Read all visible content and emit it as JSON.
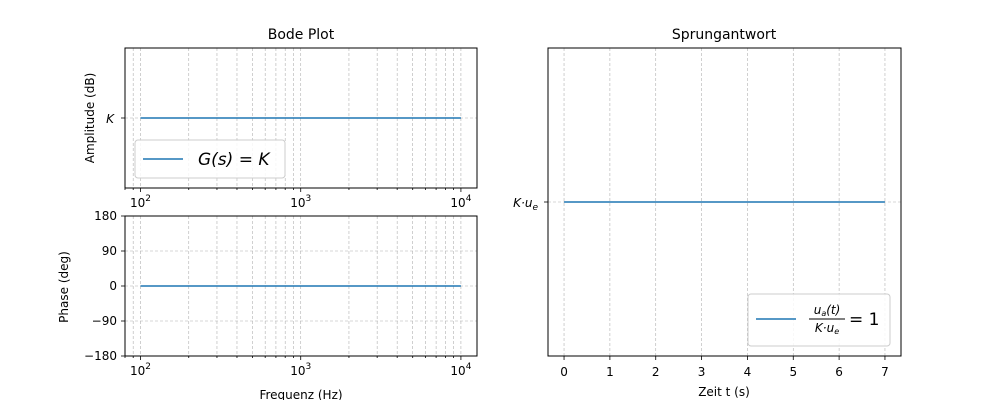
{
  "chart_data": [
    {
      "type": "line",
      "panel": "bode-amplitude",
      "title": "Bode Plot",
      "ylabel": "Amplitude (dB)",
      "xscale": "log",
      "xlim": [
        80,
        12600
      ],
      "ytick_labels": [
        "K"
      ],
      "xtick_labels": [
        {
          "value": 100,
          "base": "10",
          "exp": "2"
        },
        {
          "value": 1000,
          "base": "10",
          "exp": "3"
        },
        {
          "value": 10000,
          "base": "10",
          "exp": "4"
        }
      ],
      "grid": true,
      "legend": {
        "placement": "lower-left",
        "entries": [
          "G(s) = K"
        ]
      },
      "series": [
        {
          "name": "G(s) = K",
          "color": "#1f77b4",
          "x": [
            100,
            10000
          ],
          "y": [
            "K",
            "K"
          ]
        }
      ]
    },
    {
      "type": "line",
      "panel": "bode-phase",
      "xlabel": "Frequenz (Hz)",
      "ylabel": "Phase (deg)",
      "xscale": "log",
      "xlim": [
        80,
        12600
      ],
      "ylim": [
        -180,
        180
      ],
      "yticks": [
        180,
        90,
        0,
        -90,
        -180
      ],
      "ytick_labels": [
        "180",
        "90",
        "0",
        "−90",
        "−180"
      ],
      "xtick_labels": [
        {
          "value": 100,
          "base": "10",
          "exp": "2"
        },
        {
          "value": 1000,
          "base": "10",
          "exp": "3"
        },
        {
          "value": 10000,
          "base": "10",
          "exp": "4"
        }
      ],
      "grid": true,
      "series": [
        {
          "color": "#1f77b4",
          "x": [
            100,
            10000
          ],
          "y": [
            0,
            0
          ]
        }
      ]
    },
    {
      "type": "line",
      "panel": "step-response",
      "title": "Sprungantwort",
      "xlabel": "Zeit t (s)",
      "xlim": [
        -0.35,
        7.35
      ],
      "xticks": [
        0,
        1,
        2,
        3,
        4,
        5,
        6,
        7
      ],
      "xtick_labels": [
        "0",
        "1",
        "2",
        "3",
        "4",
        "5",
        "6",
        "7"
      ],
      "ytick_labels": [
        "K·u_e"
      ],
      "grid": true,
      "legend": {
        "placement": "lower-right",
        "entries": [
          "u_a(t) / (K·u_e) = 1"
        ]
      },
      "series": [
        {
          "name": "u_a(t) / (K·u_e) = 1",
          "color": "#1f77b4",
          "x": [
            0,
            7
          ],
          "y": [
            "K·u_e",
            "K·u_e"
          ]
        }
      ]
    }
  ],
  "text": {
    "bode_title": "Bode Plot",
    "step_title": "Sprungantwort",
    "amp_ylabel": "Amplitude (dB)",
    "phase_ylabel": "Phase (deg)",
    "freq_xlabel": "Frequenz (Hz)",
    "time_xlabel": "Zeit t (s)",
    "amp_ytick": "K",
    "step_ytick_main": "K·u",
    "step_ytick_sub": "e",
    "legend1_prefix": "G(s) = ",
    "legend1_var": "K",
    "legend2_num_main": "u",
    "legend2_num_sub": "a",
    "legend2_num_rest": "(t)",
    "legend2_den_main": "K·u",
    "legend2_den_sub": "e",
    "legend2_eq": "= 1"
  },
  "colors": {
    "line": "#1f77b4",
    "grid": "#b0b0b0",
    "axes": "#000000"
  }
}
